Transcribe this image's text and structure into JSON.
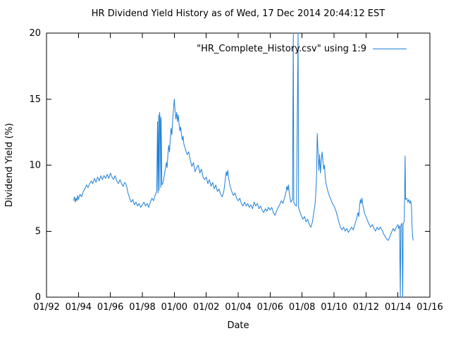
{
  "chart_data": {
    "type": "line",
    "title": "HR Dividend Yield History as of Wed, 17 Dec 2014 20:44:12 EST",
    "xlabel": "Date",
    "ylabel": "Dividend Yield (%)",
    "xlim": [
      1992,
      2016
    ],
    "ylim": [
      0,
      20
    ],
    "grid": false,
    "axis_color": "#000000",
    "background": "#ffffff",
    "x_ticks": [
      {
        "v": 1992,
        "label": "01/92"
      },
      {
        "v": 1994,
        "label": "01/94"
      },
      {
        "v": 1996,
        "label": "01/96"
      },
      {
        "v": 1998,
        "label": "01/98"
      },
      {
        "v": 2000,
        "label": "01/00"
      },
      {
        "v": 2002,
        "label": "01/02"
      },
      {
        "v": 2004,
        "label": "01/04"
      },
      {
        "v": 2006,
        "label": "01/06"
      },
      {
        "v": 2008,
        "label": "01/08"
      },
      {
        "v": 2010,
        "label": "01/10"
      },
      {
        "v": 2012,
        "label": "01/12"
      },
      {
        "v": 2014,
        "label": "01/14"
      },
      {
        "v": 2016,
        "label": "01/16"
      }
    ],
    "y_ticks": [
      {
        "v": 0,
        "label": "0"
      },
      {
        "v": 5,
        "label": "5"
      },
      {
        "v": 10,
        "label": "10"
      },
      {
        "v": 15,
        "label": "15"
      },
      {
        "v": 20,
        "label": "20"
      }
    ],
    "legend": {
      "label": "\"HR_Complete_History.csv\" using 1:9",
      "position": "top-right"
    },
    "series": [
      {
        "name": "\"HR_Complete_History.csv\" using 1:9",
        "color": "#1E7FD8",
        "points": [
          [
            1993.7,
            7.3
          ],
          [
            1993.75,
            7.6
          ],
          [
            1993.8,
            7.2
          ],
          [
            1993.85,
            7.5
          ],
          [
            1993.9,
            7.3
          ],
          [
            1993.95,
            7.7
          ],
          [
            1994.0,
            7.4
          ],
          [
            1994.1,
            7.8
          ],
          [
            1994.2,
            7.6
          ],
          [
            1994.3,
            8.0
          ],
          [
            1994.4,
            8.2
          ],
          [
            1994.5,
            8.5
          ],
          [
            1994.6,
            8.3
          ],
          [
            1994.7,
            8.6
          ],
          [
            1994.8,
            8.8
          ],
          [
            1994.9,
            8.6
          ],
          [
            1995.0,
            9.0
          ],
          [
            1995.1,
            8.7
          ],
          [
            1995.2,
            9.1
          ],
          [
            1995.3,
            8.8
          ],
          [
            1995.4,
            9.2
          ],
          [
            1995.5,
            8.9
          ],
          [
            1995.6,
            9.2
          ],
          [
            1995.7,
            9.0
          ],
          [
            1995.8,
            9.3
          ],
          [
            1995.9,
            9.0
          ],
          [
            1996.0,
            9.4
          ],
          [
            1996.1,
            9.1
          ],
          [
            1996.2,
            8.9
          ],
          [
            1996.3,
            9.2
          ],
          [
            1996.4,
            8.8
          ],
          [
            1996.5,
            8.6
          ],
          [
            1996.6,
            8.9
          ],
          [
            1996.7,
            8.6
          ],
          [
            1996.8,
            8.4
          ],
          [
            1996.9,
            8.7
          ],
          [
            1997.0,
            8.5
          ],
          [
            1997.1,
            7.9
          ],
          [
            1997.2,
            7.5
          ],
          [
            1997.3,
            7.2
          ],
          [
            1997.4,
            7.4
          ],
          [
            1997.5,
            7.0
          ],
          [
            1997.6,
            7.2
          ],
          [
            1997.7,
            6.9
          ],
          [
            1997.8,
            7.1
          ],
          [
            1997.9,
            6.8
          ],
          [
            1998.0,
            7.0
          ],
          [
            1998.1,
            7.2
          ],
          [
            1998.2,
            6.9
          ],
          [
            1998.3,
            7.1
          ],
          [
            1998.4,
            6.8
          ],
          [
            1998.5,
            7.2
          ],
          [
            1998.6,
            7.5
          ],
          [
            1998.7,
            7.3
          ],
          [
            1998.8,
            7.7
          ],
          [
            1998.9,
            8.0
          ],
          [
            1998.95,
            13.3
          ],
          [
            1998.98,
            7.9
          ],
          [
            1999.02,
            13.8
          ],
          [
            1999.05,
            8.1
          ],
          [
            1999.08,
            14.0
          ],
          [
            1999.12,
            13.4
          ],
          [
            1999.15,
            8.3
          ],
          [
            1999.18,
            13.6
          ],
          [
            1999.22,
            8.5
          ],
          [
            1999.3,
            8.7
          ],
          [
            1999.4,
            9.4
          ],
          [
            1999.5,
            10.2
          ],
          [
            1999.55,
            9.8
          ],
          [
            1999.6,
            10.8
          ],
          [
            1999.65,
            11.5
          ],
          [
            1999.7,
            11.0
          ],
          [
            1999.75,
            12.0
          ],
          [
            1999.8,
            12.8
          ],
          [
            1999.85,
            12.3
          ],
          [
            1999.9,
            13.5
          ],
          [
            1999.95,
            14.2
          ],
          [
            2000.0,
            15.0
          ],
          [
            2000.05,
            14.1
          ],
          [
            2000.1,
            13.5
          ],
          [
            2000.15,
            14.0
          ],
          [
            2000.2,
            13.3
          ],
          [
            2000.25,
            13.8
          ],
          [
            2000.3,
            13.1
          ],
          [
            2000.35,
            12.6
          ],
          [
            2000.4,
            12.9
          ],
          [
            2000.45,
            12.3
          ],
          [
            2000.5,
            11.9
          ],
          [
            2000.55,
            12.2
          ],
          [
            2000.6,
            11.6
          ],
          [
            2000.7,
            11.2
          ],
          [
            2000.8,
            10.8
          ],
          [
            2000.9,
            11.0
          ],
          [
            2001.0,
            10.4
          ],
          [
            2001.1,
            9.9
          ],
          [
            2001.2,
            10.2
          ],
          [
            2001.3,
            9.5
          ],
          [
            2001.4,
            9.8
          ],
          [
            2001.5,
            10.0
          ],
          [
            2001.6,
            9.4
          ],
          [
            2001.7,
            9.7
          ],
          [
            2001.8,
            9.1
          ],
          [
            2001.9,
            8.9
          ],
          [
            2002.0,
            9.1
          ],
          [
            2002.1,
            8.6
          ],
          [
            2002.2,
            8.9
          ],
          [
            2002.3,
            8.4
          ],
          [
            2002.4,
            8.7
          ],
          [
            2002.5,
            8.2
          ],
          [
            2002.6,
            8.5
          ],
          [
            2002.7,
            8.0
          ],
          [
            2002.8,
            8.2
          ],
          [
            2002.9,
            7.8
          ],
          [
            2003.0,
            7.6
          ],
          [
            2003.1,
            8.0
          ],
          [
            2003.2,
            9.0
          ],
          [
            2003.25,
            9.5
          ],
          [
            2003.3,
            9.2
          ],
          [
            2003.35,
            9.6
          ],
          [
            2003.4,
            9.0
          ],
          [
            2003.5,
            8.4
          ],
          [
            2003.6,
            8.0
          ],
          [
            2003.7,
            7.7
          ],
          [
            2003.8,
            7.9
          ],
          [
            2003.9,
            7.5
          ],
          [
            2004.0,
            7.3
          ],
          [
            2004.1,
            7.5
          ],
          [
            2004.2,
            7.1
          ],
          [
            2004.3,
            6.9
          ],
          [
            2004.4,
            7.2
          ],
          [
            2004.5,
            6.9
          ],
          [
            2004.6,
            7.1
          ],
          [
            2004.7,
            6.8
          ],
          [
            2004.8,
            7.0
          ],
          [
            2004.9,
            6.7
          ],
          [
            2005.0,
            7.2
          ],
          [
            2005.1,
            6.9
          ],
          [
            2005.2,
            7.1
          ],
          [
            2005.3,
            6.7
          ],
          [
            2005.4,
            6.9
          ],
          [
            2005.5,
            6.6
          ],
          [
            2005.6,
            6.4
          ],
          [
            2005.7,
            6.7
          ],
          [
            2005.8,
            6.5
          ],
          [
            2005.9,
            6.8
          ],
          [
            2006.0,
            6.6
          ],
          [
            2006.1,
            6.8
          ],
          [
            2006.2,
            6.4
          ],
          [
            2006.3,
            6.2
          ],
          [
            2006.4,
            6.5
          ],
          [
            2006.5,
            6.8
          ],
          [
            2006.6,
            7.0
          ],
          [
            2006.7,
            7.3
          ],
          [
            2006.8,
            7.1
          ],
          [
            2006.9,
            7.5
          ],
          [
            2007.0,
            8.0
          ],
          [
            2007.05,
            8.4
          ],
          [
            2007.1,
            8.1
          ],
          [
            2007.15,
            8.5
          ],
          [
            2007.2,
            7.9
          ],
          [
            2007.25,
            7.5
          ],
          [
            2007.3,
            7.2
          ],
          [
            2007.4,
            7.4
          ],
          [
            2007.45,
            20.0
          ],
          [
            2007.48,
            7.2
          ],
          [
            2007.55,
            7.0
          ],
          [
            2007.65,
            6.9
          ],
          [
            2007.75,
            20.0
          ],
          [
            2007.78,
            6.8
          ],
          [
            2007.85,
            6.5
          ],
          [
            2007.95,
            6.2
          ],
          [
            2008.05,
            5.9
          ],
          [
            2008.15,
            6.1
          ],
          [
            2008.25,
            5.7
          ],
          [
            2008.35,
            5.9
          ],
          [
            2008.45,
            5.5
          ],
          [
            2008.55,
            5.3
          ],
          [
            2008.65,
            5.7
          ],
          [
            2008.72,
            6.3
          ],
          [
            2008.8,
            6.9
          ],
          [
            2008.85,
            7.6
          ],
          [
            2008.9,
            9.0
          ],
          [
            2008.95,
            12.4
          ],
          [
            2009.0,
            11.0
          ],
          [
            2009.05,
            9.6
          ],
          [
            2009.1,
            10.8
          ],
          [
            2009.15,
            9.4
          ],
          [
            2009.2,
            10.3
          ],
          [
            2009.25,
            11.0
          ],
          [
            2009.3,
            10.4
          ],
          [
            2009.35,
            9.7
          ],
          [
            2009.4,
            10.0
          ],
          [
            2009.45,
            9.1
          ],
          [
            2009.5,
            8.6
          ],
          [
            2009.6,
            8.1
          ],
          [
            2009.7,
            7.7
          ],
          [
            2009.8,
            7.4
          ],
          [
            2009.9,
            7.1
          ],
          [
            2010.0,
            6.9
          ],
          [
            2010.1,
            6.6
          ],
          [
            2010.2,
            6.2
          ],
          [
            2010.3,
            5.7
          ],
          [
            2010.4,
            5.3
          ],
          [
            2010.5,
            5.1
          ],
          [
            2010.6,
            5.3
          ],
          [
            2010.7,
            5.0
          ],
          [
            2010.8,
            5.2
          ],
          [
            2010.9,
            4.9
          ],
          [
            2011.0,
            5.1
          ],
          [
            2011.1,
            5.3
          ],
          [
            2011.2,
            5.1
          ],
          [
            2011.3,
            5.5
          ],
          [
            2011.4,
            5.9
          ],
          [
            2011.5,
            6.4
          ],
          [
            2011.55,
            6.1
          ],
          [
            2011.6,
            6.9
          ],
          [
            2011.65,
            7.4
          ],
          [
            2011.7,
            7.1
          ],
          [
            2011.75,
            7.5
          ],
          [
            2011.8,
            7.0
          ],
          [
            2011.85,
            6.7
          ],
          [
            2011.9,
            6.4
          ],
          [
            2012.0,
            6.1
          ],
          [
            2012.1,
            5.8
          ],
          [
            2012.2,
            5.5
          ],
          [
            2012.3,
            5.3
          ],
          [
            2012.4,
            5.5
          ],
          [
            2012.5,
            5.2
          ],
          [
            2012.6,
            5.0
          ],
          [
            2012.7,
            5.3
          ],
          [
            2012.8,
            5.1
          ],
          [
            2012.9,
            5.3
          ],
          [
            2013.0,
            5.1
          ],
          [
            2013.1,
            4.8
          ],
          [
            2013.2,
            4.6
          ],
          [
            2013.3,
            4.4
          ],
          [
            2013.4,
            4.3
          ],
          [
            2013.5,
            4.6
          ],
          [
            2013.6,
            4.9
          ],
          [
            2013.7,
            5.2
          ],
          [
            2013.8,
            5.0
          ],
          [
            2013.9,
            5.3
          ],
          [
            2014.0,
            5.5
          ],
          [
            2014.05,
            5.2
          ],
          [
            2014.1,
            5.4
          ],
          [
            2014.15,
            0.0
          ],
          [
            2014.18,
            5.4
          ],
          [
            2014.25,
            5.6
          ],
          [
            2014.3,
            0.0
          ],
          [
            2014.33,
            5.5
          ],
          [
            2014.4,
            5.8
          ],
          [
            2014.45,
            10.7
          ],
          [
            2014.48,
            7.4
          ],
          [
            2014.55,
            7.5
          ],
          [
            2014.62,
            7.2
          ],
          [
            2014.68,
            7.4
          ],
          [
            2014.74,
            7.1
          ],
          [
            2014.8,
            7.3
          ],
          [
            2014.85,
            6.9
          ],
          [
            2014.88,
            5.5
          ],
          [
            2014.92,
            4.6
          ],
          [
            2014.96,
            4.3
          ]
        ]
      }
    ]
  }
}
